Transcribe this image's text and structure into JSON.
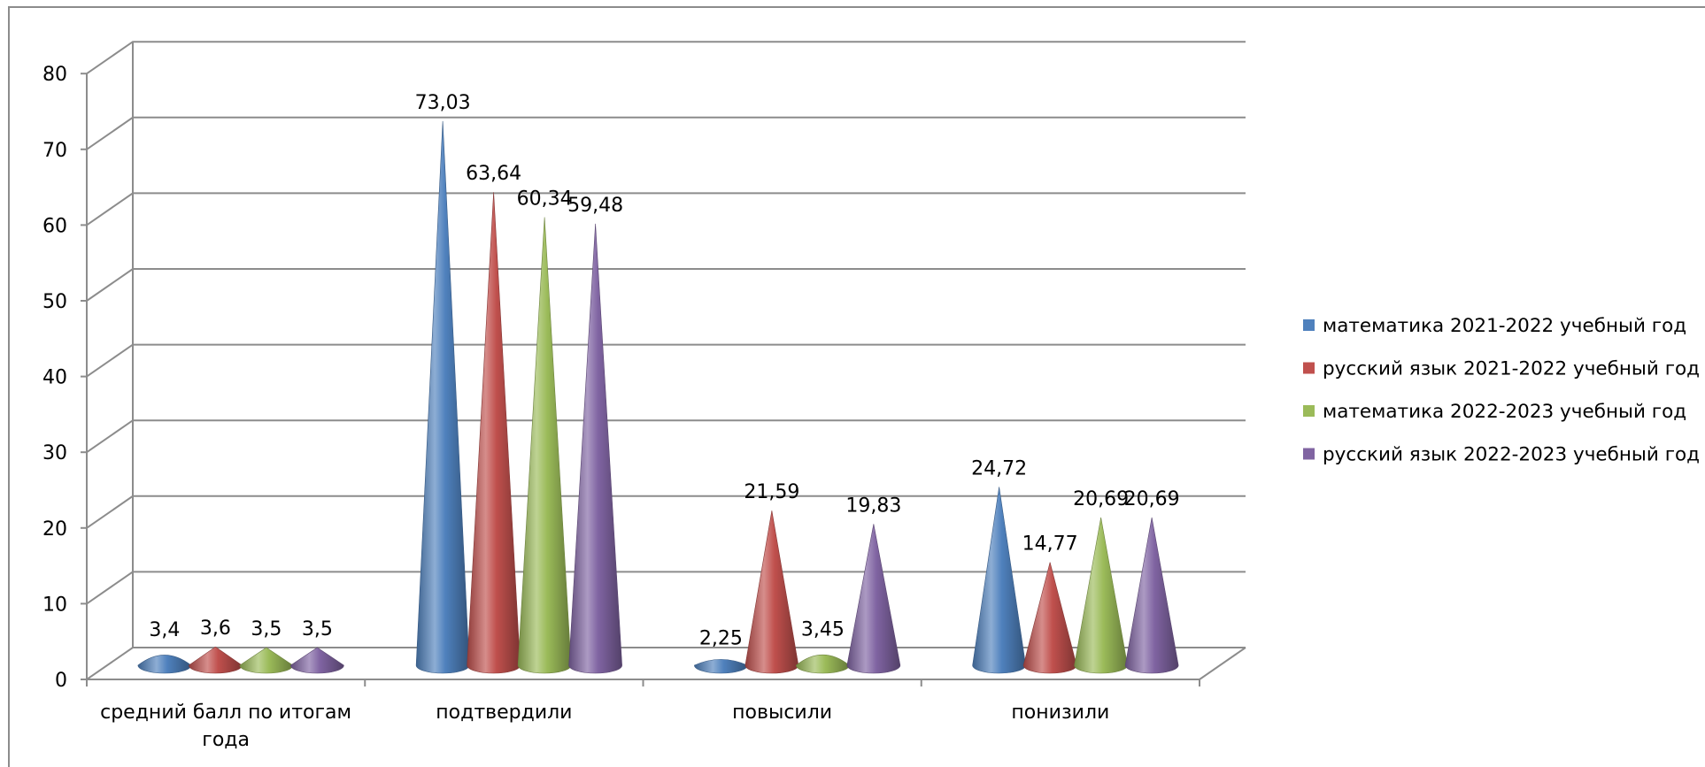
{
  "chart_data": {
    "type": "bar",
    "shape": "cone-3d",
    "categories": [
      "средний балл по итогам года",
      "подтвердили",
      "повысили",
      "понизили"
    ],
    "series": [
      {
        "name": "математика 2021-2022 учебный год",
        "color": "#4F81BD",
        "values": [
          3.4,
          73.03,
          2.25,
          24.72
        ],
        "labels": [
          "3,4",
          "73,03",
          "2,25",
          "24,72"
        ]
      },
      {
        "name": "русский язык 2021-2022 учебный год",
        "color": "#C0504D",
        "values": [
          3.6,
          63.64,
          21.59,
          14.77
        ],
        "labels": [
          "3,6",
          "63,64",
          "21,59",
          "14,77"
        ]
      },
      {
        "name": "математика 2022-2023 учебный год",
        "color": "#9BBB59",
        "values": [
          3.5,
          60.34,
          3.45,
          20.69
        ],
        "labels": [
          "3,5",
          "60,34",
          "3,45",
          "20,69"
        ]
      },
      {
        "name": "русский язык 2022-2023 учебный год",
        "color": "#8064A2",
        "values": [
          3.5,
          59.48,
          19.83,
          20.69
        ],
        "labels": [
          "3,5",
          "59,48",
          "19,83",
          "20,69"
        ]
      }
    ],
    "y_ticks": [
      "0",
      "10",
      "20",
      "30",
      "40",
      "50",
      "60",
      "70",
      "80"
    ],
    "ylim": [
      0,
      80
    ],
    "grid": true,
    "legend": "right"
  }
}
